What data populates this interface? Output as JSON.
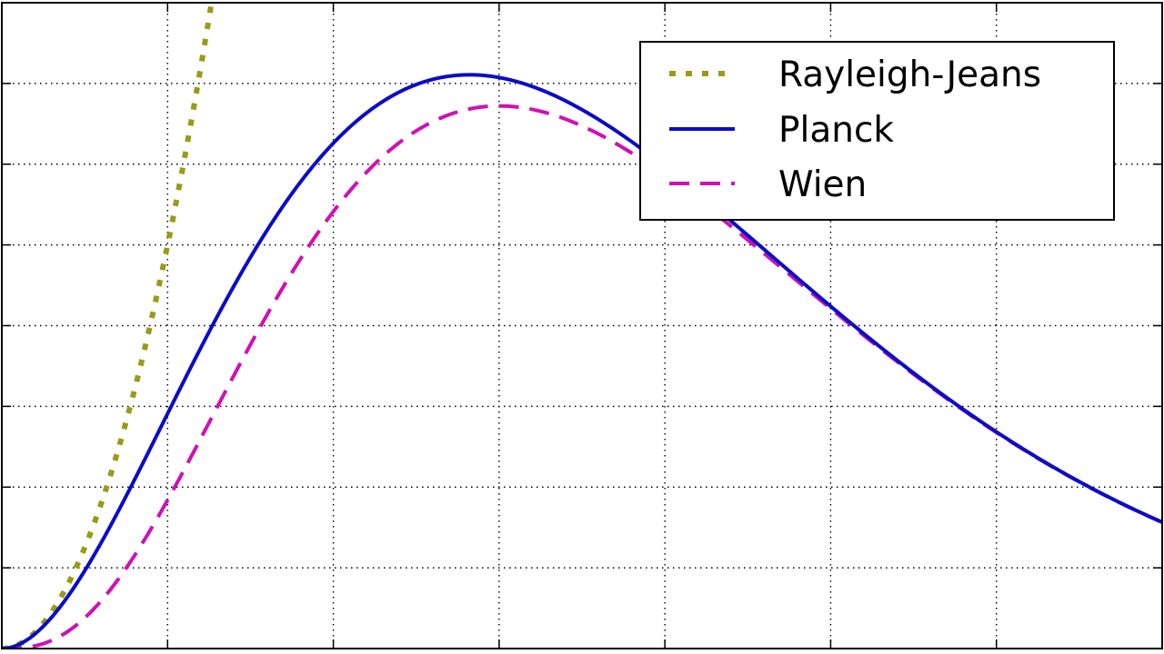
{
  "chart_data": {
    "type": "line",
    "title": "",
    "xlabel": "",
    "ylabel": "",
    "xlim": [
      0,
      7
    ],
    "ylim": [
      0,
      1.6
    ],
    "grid": true,
    "legend_position": "top-right",
    "series": [
      {
        "name": "Rayleigh-Jeans",
        "function": "rayleigh-jeans",
        "color": "#9a9a17",
        "line_style": "dotted"
      },
      {
        "name": "Planck",
        "function": "planck",
        "color": "#0b0bc8",
        "line_style": "solid"
      },
      {
        "name": "Wien",
        "function": "wien",
        "color": "#d010b4",
        "line_style": "dashed"
      }
    ]
  }
}
